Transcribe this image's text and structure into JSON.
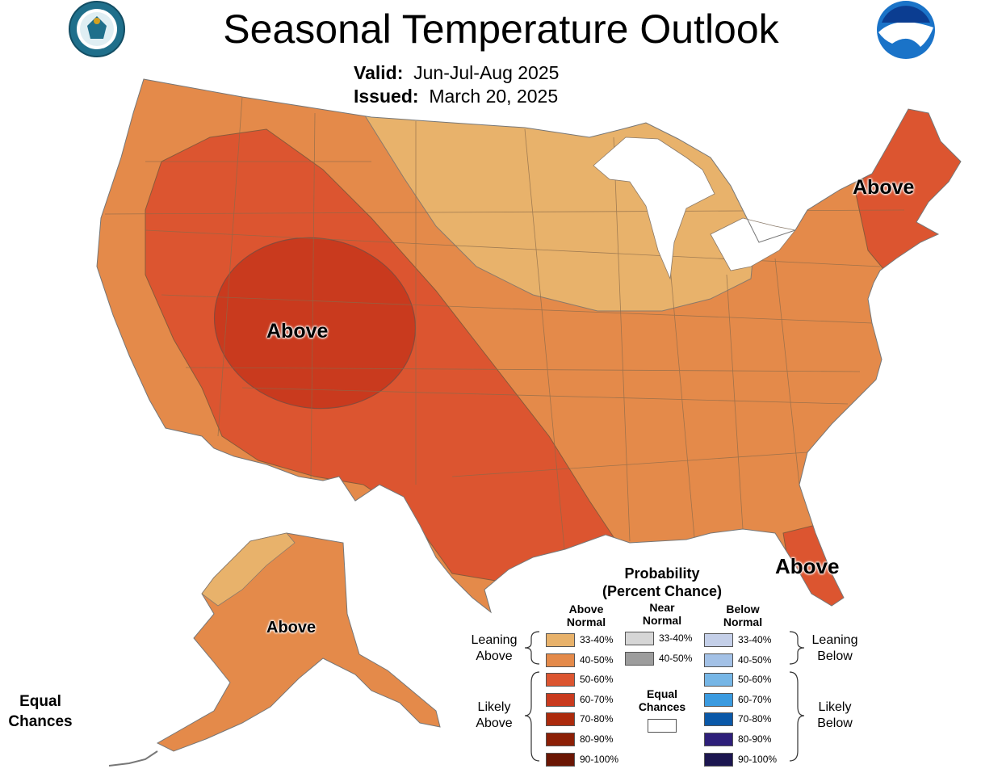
{
  "title": "Seasonal Temperature Outlook",
  "valid_label": "Valid:",
  "valid_value": "Jun-Jul-Aug 2025",
  "issued_label": "Issued:",
  "issued_value": "March 20, 2025",
  "logos": {
    "commerce_seal": "Department of Commerce seal (lettering: DEPARTMENT OF COMMERCE, UNITED STATES OF AMERICA)",
    "noaa": "NOAA"
  },
  "region_labels": {
    "west": "Above",
    "northeast": "Above",
    "florida": "Above",
    "alaska": "Above"
  },
  "equal_chances_corner": [
    "Equal",
    "Chances"
  ],
  "legend": {
    "title_line1": "Probability",
    "title_line2": "(Percent Chance)",
    "above_head": [
      "Above",
      "Normal"
    ],
    "near_head": [
      "Near",
      "Normal"
    ],
    "below_head": [
      "Below",
      "Normal"
    ],
    "leaning_above": [
      "Leaning",
      "Above"
    ],
    "likely_above": [
      "Likely",
      "Above"
    ],
    "leaning_below": [
      "Leaning",
      "Below"
    ],
    "likely_below": [
      "Likely",
      "Below"
    ],
    "equal_chances": [
      "Equal",
      "Chances"
    ],
    "above": [
      {
        "label": "33-40%",
        "color": "#e8b26b"
      },
      {
        "label": "40-50%",
        "color": "#e48a4a"
      },
      {
        "label": "50-60%",
        "color": "#dc5530"
      },
      {
        "label": "60-70%",
        "color": "#c93a1e"
      },
      {
        "label": "70-80%",
        "color": "#ac2a0c"
      },
      {
        "label": "80-90%",
        "color": "#8c1f06"
      },
      {
        "label": "90-100%",
        "color": "#6b1604"
      }
    ],
    "near": [
      {
        "label": "33-40%",
        "color": "#d6d6d6"
      },
      {
        "label": "40-50%",
        "color": "#9d9d9d"
      }
    ],
    "below": [
      {
        "label": "33-40%",
        "color": "#c4cfe8"
      },
      {
        "label": "40-50%",
        "color": "#a3c1e6"
      },
      {
        "label": "50-60%",
        "color": "#76b6e6"
      },
      {
        "label": "60-70%",
        "color": "#3b9be0"
      },
      {
        "label": "70-80%",
        "color": "#0a58a8"
      },
      {
        "label": "80-90%",
        "color": "#2e1f7a"
      },
      {
        "label": "90-100%",
        "color": "#1c1650"
      }
    ]
  },
  "colors": {
    "lean_above": "#e8b26b",
    "above_40_50": "#e48a4a",
    "above_50_60": "#dc5530",
    "above_60_70": "#c93a1e",
    "state_border": "#8a6a4a",
    "noaa_blue": "#1a73c8"
  }
}
